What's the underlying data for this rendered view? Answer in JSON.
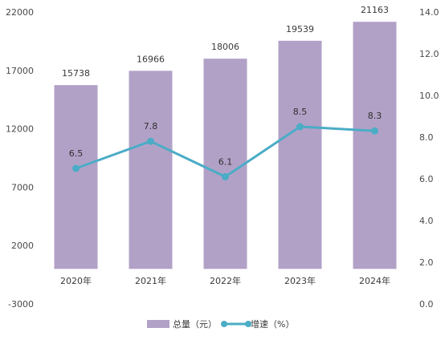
{
  "chart_data": {
    "type": "bar+line",
    "categories": [
      "2020年",
      "2021年",
      "2022年",
      "2023年",
      "2024年"
    ],
    "series": [
      {
        "name": "总量（元）",
        "type": "bar",
        "axis": "left",
        "values": [
          15738,
          16966,
          18006,
          19539,
          21163
        ],
        "labels": [
          "15738",
          "16966",
          "18006",
          "19539",
          "21163"
        ]
      },
      {
        "name": "增速（%）",
        "type": "line",
        "axis": "right",
        "values": [
          6.5,
          7.8,
          6.1,
          8.5,
          8.3
        ],
        "labels": [
          "6.5",
          "7.8",
          "6.1",
          "8.5",
          "8.3"
        ]
      }
    ],
    "left_axis": {
      "ylim": [
        -3000,
        22000
      ],
      "ticks": [
        "22000",
        "17000",
        "12000",
        "7000",
        "2000",
        "-3000"
      ],
      "tick_values": [
        22000,
        17000,
        12000,
        7000,
        2000,
        -3000
      ]
    },
    "right_axis": {
      "ylim": [
        0,
        14
      ],
      "ticks": [
        "14.0",
        "12.0",
        "10.0",
        "8.0",
        "6.0",
        "4.0",
        "2.0",
        "0.0"
      ],
      "tick_values": [
        14,
        12,
        10,
        8,
        6,
        4,
        2,
        0
      ]
    },
    "grid": false,
    "legend_position": "bottom",
    "colors": {
      "bar": "#b2a1c7",
      "line": "#4bacc6"
    }
  }
}
